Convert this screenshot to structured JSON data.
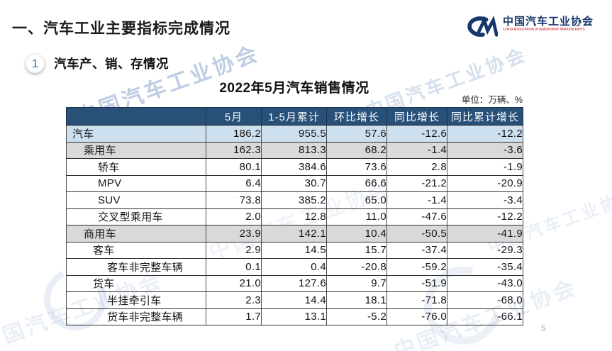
{
  "slide": {
    "title": "一、汽车工业主要指标完成情况",
    "section_number": "1",
    "section_title": "汽车产、销、存情况",
    "table_title": "2022年5月汽车销售情况",
    "unit_label": "单位：万辆、%",
    "page_number": "5"
  },
  "logo": {
    "name_cn": "中国汽车工业协会",
    "name_en": "China Association of Automobile Manufacturers"
  },
  "watermark": {
    "text": "中国汽车工业协会"
  },
  "colors": {
    "header_bg": "#28517a",
    "total_row_bg": "#cde0f0",
    "group_row_bg": "#d9d9d9",
    "logo_blue": "#17366b",
    "logo_red": "#c00000",
    "badge_number_blue": "#2e74b5"
  },
  "table": {
    "columns": [
      "",
      "5月",
      "1-5月累计",
      "环比增长",
      "同比增长",
      "同比累计增长"
    ],
    "rows": [
      {
        "label": "汽车",
        "indent": 0,
        "style": "total",
        "values": [
          "186.2",
          "955.5",
          "57.6",
          "-12.6",
          "-12.2"
        ]
      },
      {
        "label": "乘用车",
        "indent": 1,
        "style": "group",
        "values": [
          "162.3",
          "813.3",
          "68.2",
          "-1.4",
          "-3.6"
        ]
      },
      {
        "label": "轿车",
        "indent": 3,
        "style": "plain",
        "values": [
          "80.1",
          "384.6",
          "73.6",
          "2.8",
          "-1.9"
        ]
      },
      {
        "label": "MPV",
        "indent": 3,
        "style": "plain",
        "values": [
          "6.4",
          "30.7",
          "66.6",
          "-21.2",
          "-20.9"
        ]
      },
      {
        "label": "SUV",
        "indent": 3,
        "style": "plain",
        "values": [
          "73.8",
          "385.2",
          "65.0",
          "-1.4",
          "-3.4"
        ]
      },
      {
        "label": "交叉型乘用车",
        "indent": 3,
        "style": "plain",
        "values": [
          "2.0",
          "12.8",
          "11.0",
          "-47.6",
          "-12.2"
        ]
      },
      {
        "label": "商用车",
        "indent": 1,
        "style": "group",
        "values": [
          "23.9",
          "142.1",
          "10.4",
          "-50.5",
          "-41.9"
        ]
      },
      {
        "label": "客车",
        "indent": 2,
        "style": "plain",
        "values": [
          "2.9",
          "14.5",
          "15.7",
          "-37.4",
          "-29.3"
        ]
      },
      {
        "label": "客车非完整车辆",
        "indent": 4,
        "style": "plain",
        "values": [
          "0.1",
          "0.4",
          "-20.8",
          "-59.2",
          "-35.4"
        ]
      },
      {
        "label": "货车",
        "indent": 2,
        "style": "plain",
        "values": [
          "21.0",
          "127.6",
          "9.7",
          "-51.9",
          "-43.0"
        ]
      },
      {
        "label": "半挂牵引车",
        "indent": 4,
        "style": "plain",
        "values": [
          "2.3",
          "14.4",
          "18.1",
          "-71.8",
          "-68.0"
        ]
      },
      {
        "label": "货车非完整车辆",
        "indent": 4,
        "style": "plain",
        "values": [
          "1.7",
          "13.1",
          "-5.2",
          "-76.0",
          "-66.1"
        ]
      }
    ]
  }
}
